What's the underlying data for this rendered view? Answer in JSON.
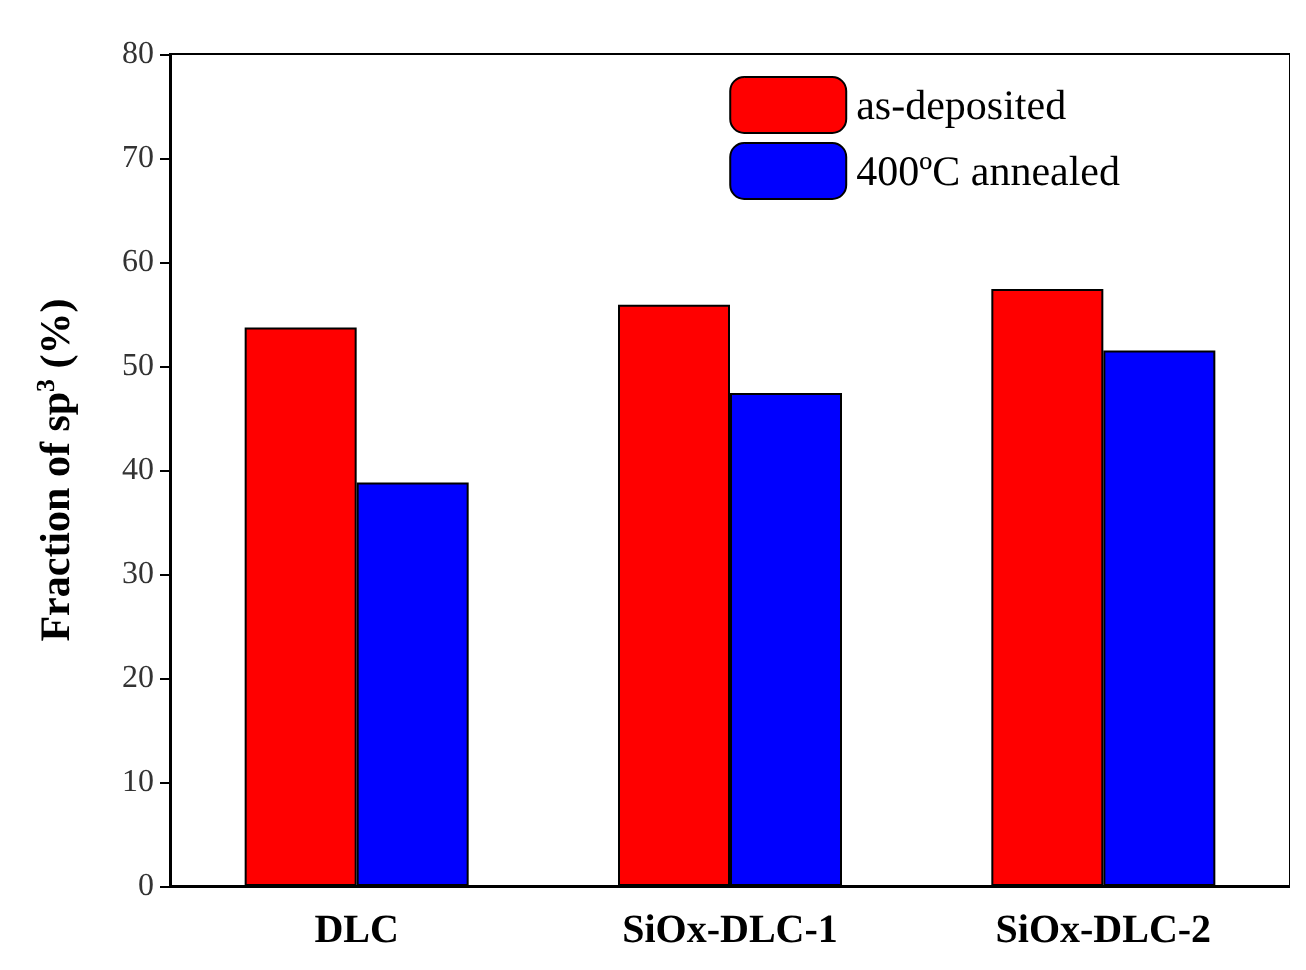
{
  "chart_data": {
    "type": "bar",
    "categories": [
      "DLC",
      "SiOx-DLC-1",
      "SiOx-DLC-2"
    ],
    "ylabel": "Fraction of sp$^{3}$ (%)",
    "series": [
      {
        "name": "as-deposited",
        "color": "#ff0000",
        "values": [
          53.7,
          55.9,
          57.4
        ]
      },
      {
        "name": "400ºC annealed",
        "color": "#0000ff",
        "values": [
          38.8,
          47.4,
          51.5
        ]
      }
    ],
    "ylim": [
      0,
      80
    ],
    "yticks": [
      0,
      10,
      20,
      30,
      40,
      50,
      60,
      70,
      80
    ],
    "grid": false,
    "legend": "top right"
  }
}
